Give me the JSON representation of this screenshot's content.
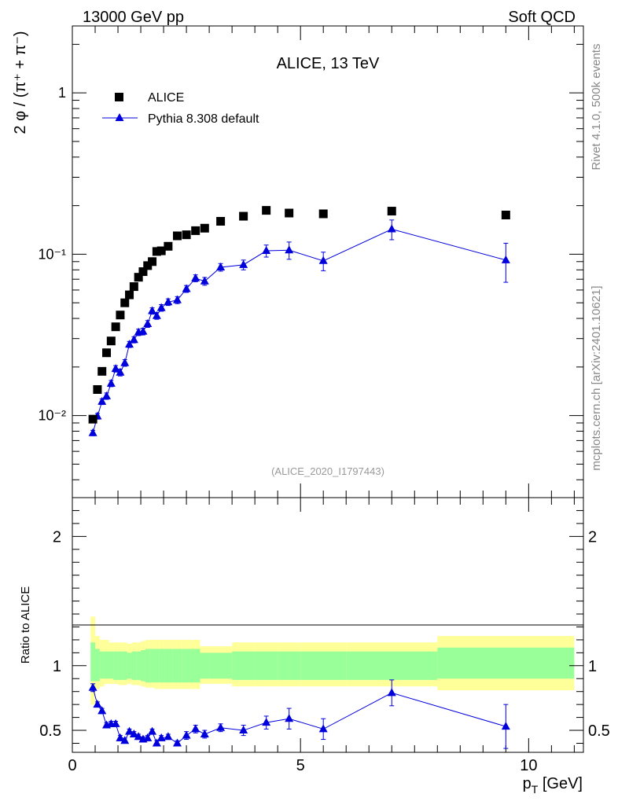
{
  "header": {
    "left": "13000 GeV pp",
    "right": "Soft QCD"
  },
  "side_labels": {
    "rivet": "Rivet 4.1.0,  500k events",
    "site": "mcplots.cern.ch [arXiv:2401.10621]"
  },
  "colors": {
    "data": "#000000",
    "mc": "#0000dd",
    "band_outer": "#ffff99",
    "band_inner": "#99ff99",
    "ref_id": "#999999"
  },
  "chart_data": [
    {
      "type": "scatter",
      "title": "ALICE, 13 TeV",
      "ylabel": "2 φ / (π⁺ + π⁻)",
      "xlabel": "",
      "xscale": "linear",
      "yscale": "log",
      "xlim": [
        0,
        11.2
      ],
      "ylim": [
        0.0031,
        2.6
      ],
      "y_tick_labels": [
        "10⁻²",
        "10⁻¹",
        "1"
      ],
      "ref_id": "(ALICE_2020_I1797443)",
      "legend": [
        "ALICE",
        "Pythia 8.308 default"
      ],
      "series": [
        {
          "name": "ALICE",
          "marker": "square",
          "x": [
            0.45,
            0.55,
            0.65,
            0.75,
            0.85,
            0.95,
            1.05,
            1.15,
            1.25,
            1.35,
            1.45,
            1.55,
            1.65,
            1.75,
            1.85,
            1.95,
            2.1,
            2.3,
            2.5,
            2.7,
            2.9,
            3.25,
            3.75,
            4.25,
            4.75,
            5.5,
            7.0,
            9.5
          ],
          "y": [
            0.0095,
            0.0145,
            0.0188,
            0.0245,
            0.029,
            0.0355,
            0.042,
            0.05,
            0.056,
            0.063,
            0.072,
            0.078,
            0.085,
            0.09,
            0.104,
            0.105,
            0.112,
            0.13,
            0.132,
            0.14,
            0.145,
            0.16,
            0.172,
            0.187,
            0.18,
            0.178,
            0.185,
            0.175
          ]
        },
        {
          "name": "Pythia 8.308 default",
          "marker": "triangle",
          "x": [
            0.45,
            0.55,
            0.65,
            0.75,
            0.85,
            0.95,
            1.05,
            1.15,
            1.25,
            1.35,
            1.45,
            1.55,
            1.65,
            1.75,
            1.85,
            1.95,
            2.1,
            2.3,
            2.5,
            2.7,
            2.9,
            3.25,
            3.75,
            4.25,
            4.75,
            5.5,
            7.0,
            9.5
          ],
          "y": [
            0.0078,
            0.0099,
            0.0122,
            0.0132,
            0.0158,
            0.0195,
            0.0185,
            0.0212,
            0.0276,
            0.0295,
            0.0328,
            0.0332,
            0.037,
            0.0445,
            0.0415,
            0.0465,
            0.0505,
            0.052,
            0.061,
            0.071,
            0.068,
            0.083,
            0.086,
            0.105,
            0.106,
            0.091,
            0.143,
            0.092
          ],
          "err": [
            0.0003,
            0.0004,
            0.0005,
            0.0006,
            0.0007,
            0.0009,
            0.0009,
            0.001,
            0.0012,
            0.0013,
            0.0015,
            0.0016,
            0.0018,
            0.002,
            0.002,
            0.0022,
            0.0024,
            0.0026,
            0.003,
            0.0035,
            0.0038,
            0.0045,
            0.006,
            0.009,
            0.013,
            0.012,
            0.02,
            0.025
          ]
        }
      ]
    },
    {
      "type": "scatter",
      "title": "",
      "ylabel": "Ratio to ALICE",
      "xlabel": "p_T [GeV]",
      "xlabel_main": "p",
      "xlabel_sub": "T",
      "xlabel_unit": " [GeV]",
      "xlim": [
        0,
        11.2
      ],
      "ylim": [
        0.33,
        2.3
      ],
      "x_ticks": [
        0,
        5,
        10
      ],
      "x_tick_labels": [
        "0",
        "5",
        "10"
      ],
      "y_ticks": [
        0.5,
        1,
        2
      ],
      "y_tick_labels": [
        "0.5",
        "1",
        "2"
      ],
      "bands": {
        "x_edges": [
          0.4,
          0.5,
          0.6,
          0.7,
          0.8,
          0.9,
          1.0,
          1.1,
          1.2,
          1.3,
          1.4,
          1.5,
          1.6,
          1.7,
          1.8,
          1.9,
          2.0,
          2.2,
          2.4,
          2.6,
          2.8,
          3.0,
          3.5,
          4.0,
          4.5,
          5.0,
          6.0,
          8.0,
          11.0
        ],
        "inner_lo": [
          0.88,
          0.88,
          0.9,
          0.9,
          0.9,
          0.89,
          0.89,
          0.89,
          0.9,
          0.89,
          0.89,
          0.88,
          0.87,
          0.87,
          0.87,
          0.87,
          0.87,
          0.87,
          0.87,
          0.87,
          0.9,
          0.9,
          0.89,
          0.89,
          0.89,
          0.89,
          0.89,
          0.9
        ],
        "inner_hi": [
          1.18,
          1.13,
          1.11,
          1.11,
          1.11,
          1.11,
          1.11,
          1.11,
          1.1,
          1.11,
          1.11,
          1.12,
          1.13,
          1.13,
          1.13,
          1.13,
          1.13,
          1.13,
          1.13,
          1.13,
          1.1,
          1.1,
          1.11,
          1.11,
          1.11,
          1.11,
          1.11,
          1.14
        ],
        "outer_lo": [
          0.7,
          0.82,
          0.84,
          0.86,
          0.86,
          0.86,
          0.85,
          0.85,
          0.86,
          0.85,
          0.85,
          0.84,
          0.83,
          0.83,
          0.82,
          0.82,
          0.82,
          0.82,
          0.82,
          0.82,
          0.86,
          0.86,
          0.84,
          0.84,
          0.84,
          0.84,
          0.84,
          0.81
        ],
        "outer_hi": [
          1.38,
          1.23,
          1.2,
          1.2,
          1.18,
          1.18,
          1.18,
          1.18,
          1.17,
          1.18,
          1.18,
          1.19,
          1.2,
          1.2,
          1.2,
          1.2,
          1.2,
          1.2,
          1.2,
          1.2,
          1.15,
          1.15,
          1.18,
          1.18,
          1.18,
          1.18,
          1.18,
          1.23
        ]
      },
      "series": [
        {
          "name": "Pythia 8.308 default / ALICE",
          "marker": "triangle",
          "x": [
            0.45,
            0.55,
            0.65,
            0.75,
            0.85,
            0.95,
            1.05,
            1.15,
            1.25,
            1.35,
            1.45,
            1.55,
            1.65,
            1.75,
            1.85,
            1.95,
            2.1,
            2.3,
            2.5,
            2.7,
            2.9,
            3.25,
            3.75,
            4.25,
            4.75,
            5.5,
            7.0,
            9.5
          ],
          "y": [
            0.83,
            0.7,
            0.65,
            0.54,
            0.55,
            0.55,
            0.44,
            0.42,
            0.49,
            0.47,
            0.45,
            0.43,
            0.44,
            0.49,
            0.4,
            0.44,
            0.45,
            0.4,
            0.46,
            0.51,
            0.47,
            0.52,
            0.5,
            0.56,
            0.59,
            0.51,
            0.79,
            0.53
          ],
          "err": [
            0.03,
            0.02,
            0.02,
            0.02,
            0.02,
            0.02,
            0.02,
            0.02,
            0.02,
            0.02,
            0.02,
            0.02,
            0.02,
            0.02,
            0.02,
            0.02,
            0.02,
            0.02,
            0.03,
            0.03,
            0.03,
            0.03,
            0.04,
            0.05,
            0.08,
            0.08,
            0.1,
            0.17
          ]
        }
      ]
    }
  ]
}
